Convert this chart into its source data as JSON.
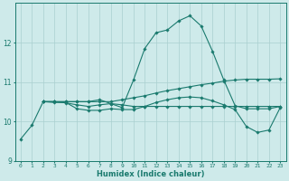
{
  "xlabel": "Humidex (Indice chaleur)",
  "bg_color": "#ceeaea",
  "line_color": "#1a7a6e",
  "grid_color": "#aacfcf",
  "xmin": 0,
  "xmax": 23,
  "ymin": 9,
  "ymax": 13.0,
  "yticks": [
    9,
    10,
    11,
    12
  ],
  "line1_x": [
    0,
    1,
    2,
    3,
    4,
    5,
    6,
    7,
    8,
    9,
    10,
    11,
    12,
    13,
    14,
    15,
    16,
    17,
    18,
    19,
    20,
    21,
    22,
    23
  ],
  "line1_y": [
    9.55,
    9.9,
    10.5,
    10.5,
    10.5,
    10.5,
    10.5,
    10.55,
    10.45,
    10.35,
    11.05,
    11.85,
    12.25,
    12.32,
    12.55,
    12.68,
    12.42,
    11.78,
    11.05,
    10.4,
    10.32,
    10.32,
    10.32,
    10.38
  ],
  "line2_x": [
    2,
    3,
    4,
    5,
    6,
    7,
    8,
    9,
    10,
    11,
    12,
    13,
    14,
    15,
    16,
    17,
    18,
    19,
    20,
    21,
    22,
    23
  ],
  "line2_y": [
    10.5,
    10.5,
    10.5,
    10.5,
    10.5,
    10.5,
    10.5,
    10.55,
    10.6,
    10.65,
    10.72,
    10.78,
    10.83,
    10.88,
    10.93,
    10.97,
    11.02,
    11.05,
    11.07,
    11.07,
    11.07,
    11.08
  ],
  "line3_x": [
    2,
    3,
    4,
    5,
    6,
    7,
    8,
    9,
    10,
    11,
    12,
    13,
    14,
    15,
    16,
    17,
    18,
    19,
    20,
    21,
    22,
    23
  ],
  "line3_y": [
    10.5,
    10.48,
    10.48,
    10.32,
    10.28,
    10.28,
    10.32,
    10.3,
    10.3,
    10.38,
    10.48,
    10.55,
    10.6,
    10.62,
    10.6,
    10.52,
    10.42,
    10.3,
    9.87,
    9.72,
    9.78,
    10.35
  ],
  "line4_x": [
    2,
    3,
    4,
    5,
    6,
    7,
    8,
    9,
    10,
    11,
    12,
    13,
    14,
    15,
    16,
    17,
    18,
    19,
    20,
    21,
    22,
    23
  ],
  "line4_y": [
    10.5,
    10.5,
    10.47,
    10.42,
    10.38,
    10.42,
    10.45,
    10.42,
    10.38,
    10.38,
    10.38,
    10.38,
    10.38,
    10.38,
    10.38,
    10.38,
    10.38,
    10.38,
    10.38,
    10.38,
    10.38,
    10.38
  ]
}
